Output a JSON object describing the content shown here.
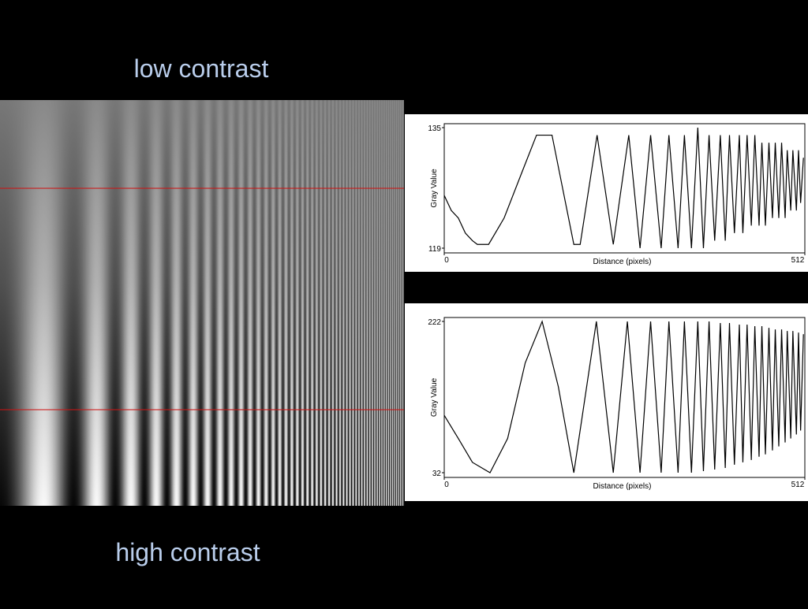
{
  "labels": {
    "top": "low contrast",
    "bottom": "high contrast"
  },
  "chart_data": [
    {
      "type": "line",
      "xlabel": "Distance (pixels)",
      "ylabel": "Gray Value",
      "color": "#000000",
      "xlim": [
        0,
        512
      ],
      "xticks": [
        0,
        512
      ],
      "ylim": [
        119,
        135
      ],
      "yticks": [
        119,
        135
      ],
      "x": [
        0,
        10,
        20,
        30,
        40,
        47,
        63,
        85,
        110,
        131,
        153,
        184,
        193,
        217,
        240,
        262,
        278,
        293,
        308,
        319,
        332,
        341,
        351,
        360,
        368,
        376,
        384,
        392,
        399,
        405,
        412,
        419,
        424,
        430,
        436,
        441,
        447,
        451,
        456,
        461,
        466,
        470,
        475,
        479,
        484,
        487,
        492,
        495,
        500,
        503,
        506,
        510
      ],
      "values": [
        126,
        124,
        123,
        121,
        120,
        119.5,
        119.5,
        123,
        129,
        134,
        134,
        119.5,
        119.5,
        134,
        119.5,
        134,
        119,
        134,
        119,
        134,
        119,
        134,
        119,
        135,
        119,
        134,
        120,
        134,
        120,
        134,
        121,
        134,
        121,
        134,
        122,
        134,
        122,
        133,
        122,
        133,
        123,
        133,
        123,
        133,
        123,
        132,
        124,
        132,
        124,
        132,
        125,
        131
      ]
    },
    {
      "type": "line",
      "xlabel": "Distance (pixels)",
      "ylabel": "Gray Value",
      "color": "#000000",
      "xlim": [
        0,
        512
      ],
      "xticks": [
        0,
        512
      ],
      "ylim": [
        32,
        222
      ],
      "yticks": [
        32,
        222
      ],
      "x": [
        0,
        20,
        40,
        65,
        90,
        115,
        139,
        162,
        184,
        216,
        240,
        260,
        278,
        293,
        308,
        319,
        332,
        341,
        351,
        360,
        368,
        376,
        384,
        392,
        399,
        405,
        412,
        419,
        424,
        430,
        436,
        441,
        447,
        451,
        456,
        461,
        466,
        470,
        475,
        479,
        484,
        487,
        492,
        495,
        500,
        503,
        506,
        510
      ],
      "values": [
        104,
        75,
        45,
        32,
        75,
        170,
        222,
        140,
        32,
        222,
        32,
        222,
        32,
        222,
        32,
        222,
        32,
        222,
        32,
        222,
        34,
        222,
        36,
        220,
        38,
        220,
        42,
        218,
        45,
        218,
        48,
        216,
        52,
        216,
        55,
        214,
        60,
        212,
        65,
        212,
        70,
        210,
        75,
        210,
        80,
        208,
        85,
        206
      ]
    }
  ]
}
